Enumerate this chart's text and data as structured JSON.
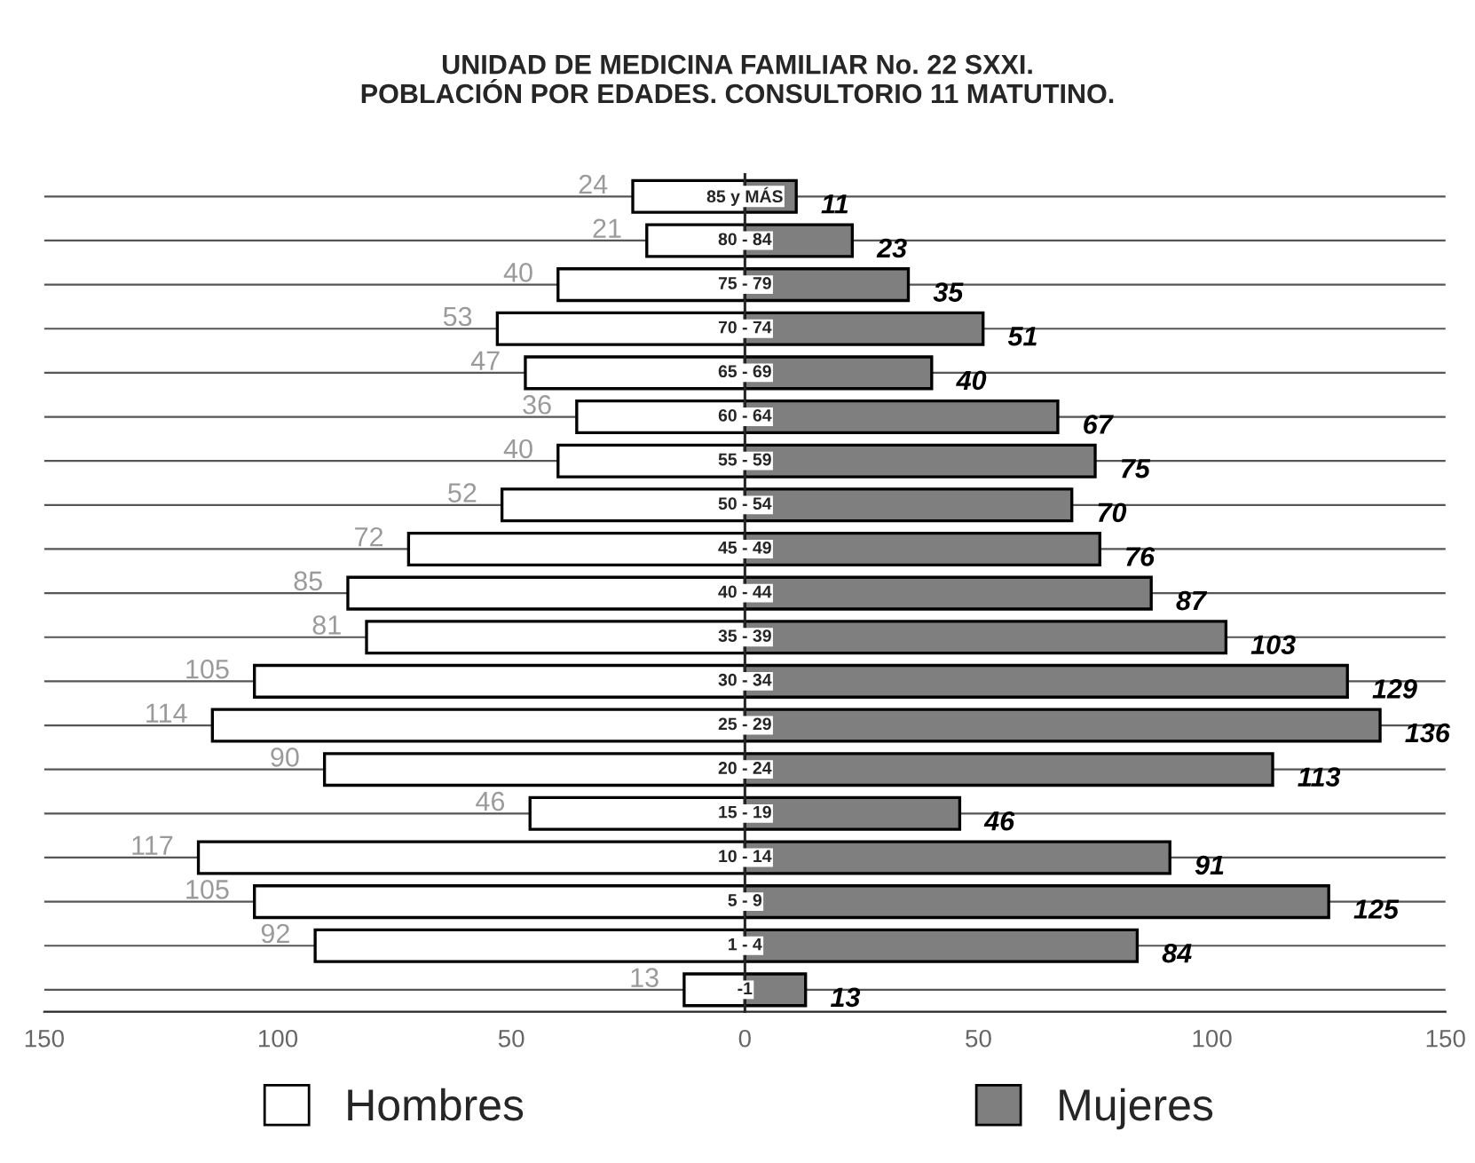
{
  "chart_data": [
    {
      "type": "bar",
      "orientation": "horizontal",
      "title": "UNIDAD DE MEDICINA FAMILIAR No. 22 SXXI.\nPOBLACIÓN POR EDADES. CONSULTORIO 11 MATUTINO.",
      "categories": [
        null,
        null,
        null,
        null,
        null,
        null,
        null,
        null,
        null,
        null,
        null,
        null,
        null,
        null,
        null,
        null,
        null,
        null,
        null
      ],
      "series": [
        {
          "name": "Hombres",
          "color": "#ffffff",
          "values": [
            24,
            21,
            40,
            53,
            47,
            36,
            40,
            52,
            72,
            85,
            81,
            105,
            114,
            90,
            46,
            117,
            105,
            92,
            13
          ],
          "value_labels": [
            "24",
            "21",
            "40",
            "53",
            "47",
            "36",
            "40",
            "52",
            "72",
            "85",
            "81",
            "105",
            "114",
            "90",
            "46",
            "117",
            "105",
            "92",
            "13"
          ]
        }
      ],
      "xlim": [
        150,
        0
      ],
      "xticks": [
        150,
        100,
        50,
        0
      ],
      "grid": "y",
      "legend": "bottom"
    },
    {
      "type": "bar",
      "orientation": "horizontal",
      "categories": [
        "85 y MÁS",
        "80 - 84",
        "75 - 79",
        "70 - 74",
        "65 - 69",
        "60 - 64",
        "55 - 59",
        "50 - 54",
        "45 - 49",
        "40 - 44",
        "35 - 39",
        "30 - 34",
        "25 - 29",
        "20 - 24",
        "15 - 19",
        "10 - 14",
        "5 - 9",
        "1 - 4",
        "-1"
      ],
      "series": [
        {
          "name": "Mujeres",
          "color": "#7f7f7f",
          "values": [
            11,
            23,
            35,
            51,
            40,
            67,
            75,
            70,
            76,
            87,
            103,
            129,
            136,
            113,
            46,
            91,
            125,
            84,
            13
          ],
          "value_labels": [
            "11",
            "23",
            "35",
            "51",
            "40",
            "67",
            "75",
            "70",
            "76",
            "87",
            "103",
            "129",
            "136",
            "113",
            "46",
            "91",
            "125",
            "84",
            "13"
          ]
        }
      ],
      "xlim": [
        0,
        150
      ],
      "xticks": [
        50,
        100,
        150
      ],
      "grid": "y",
      "legend": "bottom"
    }
  ]
}
